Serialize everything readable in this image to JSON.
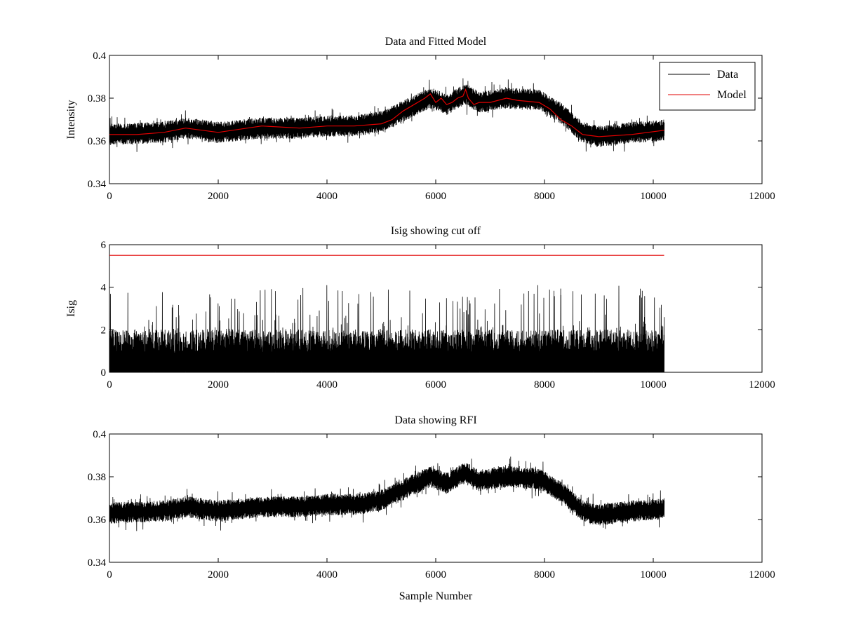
{
  "chart_data": [
    {
      "type": "line",
      "title": "Data and Fitted Model",
      "xlabel": "",
      "ylabel": "Intensity",
      "xlim": [
        0,
        12000
      ],
      "ylim": [
        0.34,
        0.4
      ],
      "xticks": [
        "0",
        "2000",
        "4000",
        "6000",
        "8000",
        "10000",
        "12000"
      ],
      "yticks": [
        "0.34",
        "0.36",
        "0.38",
        "0.4"
      ],
      "legend": {
        "placement": "top-right",
        "entries": [
          {
            "label": "Data",
            "color": "#000000"
          },
          {
            "label": "Model",
            "color": "#e00000"
          }
        ]
      },
      "series": [
        {
          "name": "Data",
          "color": "#000000",
          "style": "noisy",
          "n_samples": 10200,
          "baseline": [
            [
              0,
              0.363
            ],
            [
              1000,
              0.364
            ],
            [
              1400,
              0.366
            ],
            [
              2000,
              0.364
            ],
            [
              2800,
              0.366
            ],
            [
              3500,
              0.366
            ],
            [
              4000,
              0.367
            ],
            [
              4500,
              0.367
            ],
            [
              5000,
              0.369
            ],
            [
              5400,
              0.374
            ],
            [
              5900,
              0.38
            ],
            [
              6200,
              0.377
            ],
            [
              6550,
              0.382
            ],
            [
              6800,
              0.378
            ],
            [
              7300,
              0.38
            ],
            [
              7900,
              0.379
            ],
            [
              8300,
              0.373
            ],
            [
              8700,
              0.364
            ],
            [
              9000,
              0.362
            ],
            [
              9600,
              0.364
            ],
            [
              10200,
              0.365
            ]
          ],
          "noise_range": 0.005,
          "min": 0.347,
          "max": 0.395
        },
        {
          "name": "Model",
          "color": "#e00000",
          "x": [
            0,
            500,
            1000,
            1400,
            2000,
            2800,
            3500,
            4000,
            4500,
            5000,
            5200,
            5400,
            5600,
            5800,
            5900,
            6000,
            6100,
            6200,
            6300,
            6400,
            6500,
            6550,
            6600,
            6700,
            6800,
            7000,
            7300,
            7500,
            7900,
            8100,
            8300,
            8500,
            8700,
            9000,
            9600,
            10200
          ],
          "y": [
            0.363,
            0.363,
            0.364,
            0.366,
            0.364,
            0.367,
            0.366,
            0.367,
            0.367,
            0.368,
            0.37,
            0.374,
            0.377,
            0.38,
            0.382,
            0.378,
            0.38,
            0.377,
            0.378,
            0.38,
            0.381,
            0.384,
            0.38,
            0.377,
            0.378,
            0.378,
            0.38,
            0.379,
            0.378,
            0.375,
            0.37,
            0.367,
            0.363,
            0.362,
            0.363,
            0.365
          ]
        }
      ]
    },
    {
      "type": "line",
      "title": "Isig showing cut off",
      "xlabel": "",
      "ylabel": "Isig",
      "xlim": [
        0,
        12000
      ],
      "ylim": [
        0,
        6
      ],
      "xticks": [
        "0",
        "2000",
        "4000",
        "6000",
        "8000",
        "10000",
        "12000"
      ],
      "yticks": [
        "0",
        "2",
        "4",
        "6"
      ],
      "series": [
        {
          "name": "Isig",
          "color": "#000000",
          "style": "noisy-positive",
          "n_samples": 10200,
          "typical_max": 2.0,
          "max": 4.1
        },
        {
          "name": "Cut off",
          "color": "#e00000",
          "x": [
            0,
            10200
          ],
          "y": [
            5.5,
            5.5
          ]
        }
      ]
    },
    {
      "type": "line",
      "title": "Data showing RFI",
      "xlabel": "Sample Number",
      "ylabel": "",
      "xlim": [
        0,
        12000
      ],
      "ylim": [
        0.34,
        0.4
      ],
      "xticks": [
        "0",
        "2000",
        "4000",
        "6000",
        "8000",
        "10000",
        "12000"
      ],
      "yticks": [
        "0.34",
        "0.36",
        "0.38",
        "0.4"
      ],
      "series": [
        {
          "name": "Data",
          "color": "#000000",
          "style": "noisy",
          "n_samples": 10200,
          "baseline": [
            [
              0,
              0.363
            ],
            [
              1000,
              0.364
            ],
            [
              1400,
              0.366
            ],
            [
              2000,
              0.364
            ],
            [
              2800,
              0.366
            ],
            [
              3500,
              0.366
            ],
            [
              4000,
              0.367
            ],
            [
              4500,
              0.367
            ],
            [
              5000,
              0.369
            ],
            [
              5400,
              0.374
            ],
            [
              5900,
              0.38
            ],
            [
              6200,
              0.377
            ],
            [
              6550,
              0.382
            ],
            [
              6800,
              0.378
            ],
            [
              7300,
              0.38
            ],
            [
              7900,
              0.379
            ],
            [
              8300,
              0.373
            ],
            [
              8700,
              0.364
            ],
            [
              9000,
              0.362
            ],
            [
              9600,
              0.364
            ],
            [
              10200,
              0.365
            ]
          ],
          "noise_range": 0.005,
          "min": 0.347,
          "max": 0.395
        }
      ]
    }
  ]
}
